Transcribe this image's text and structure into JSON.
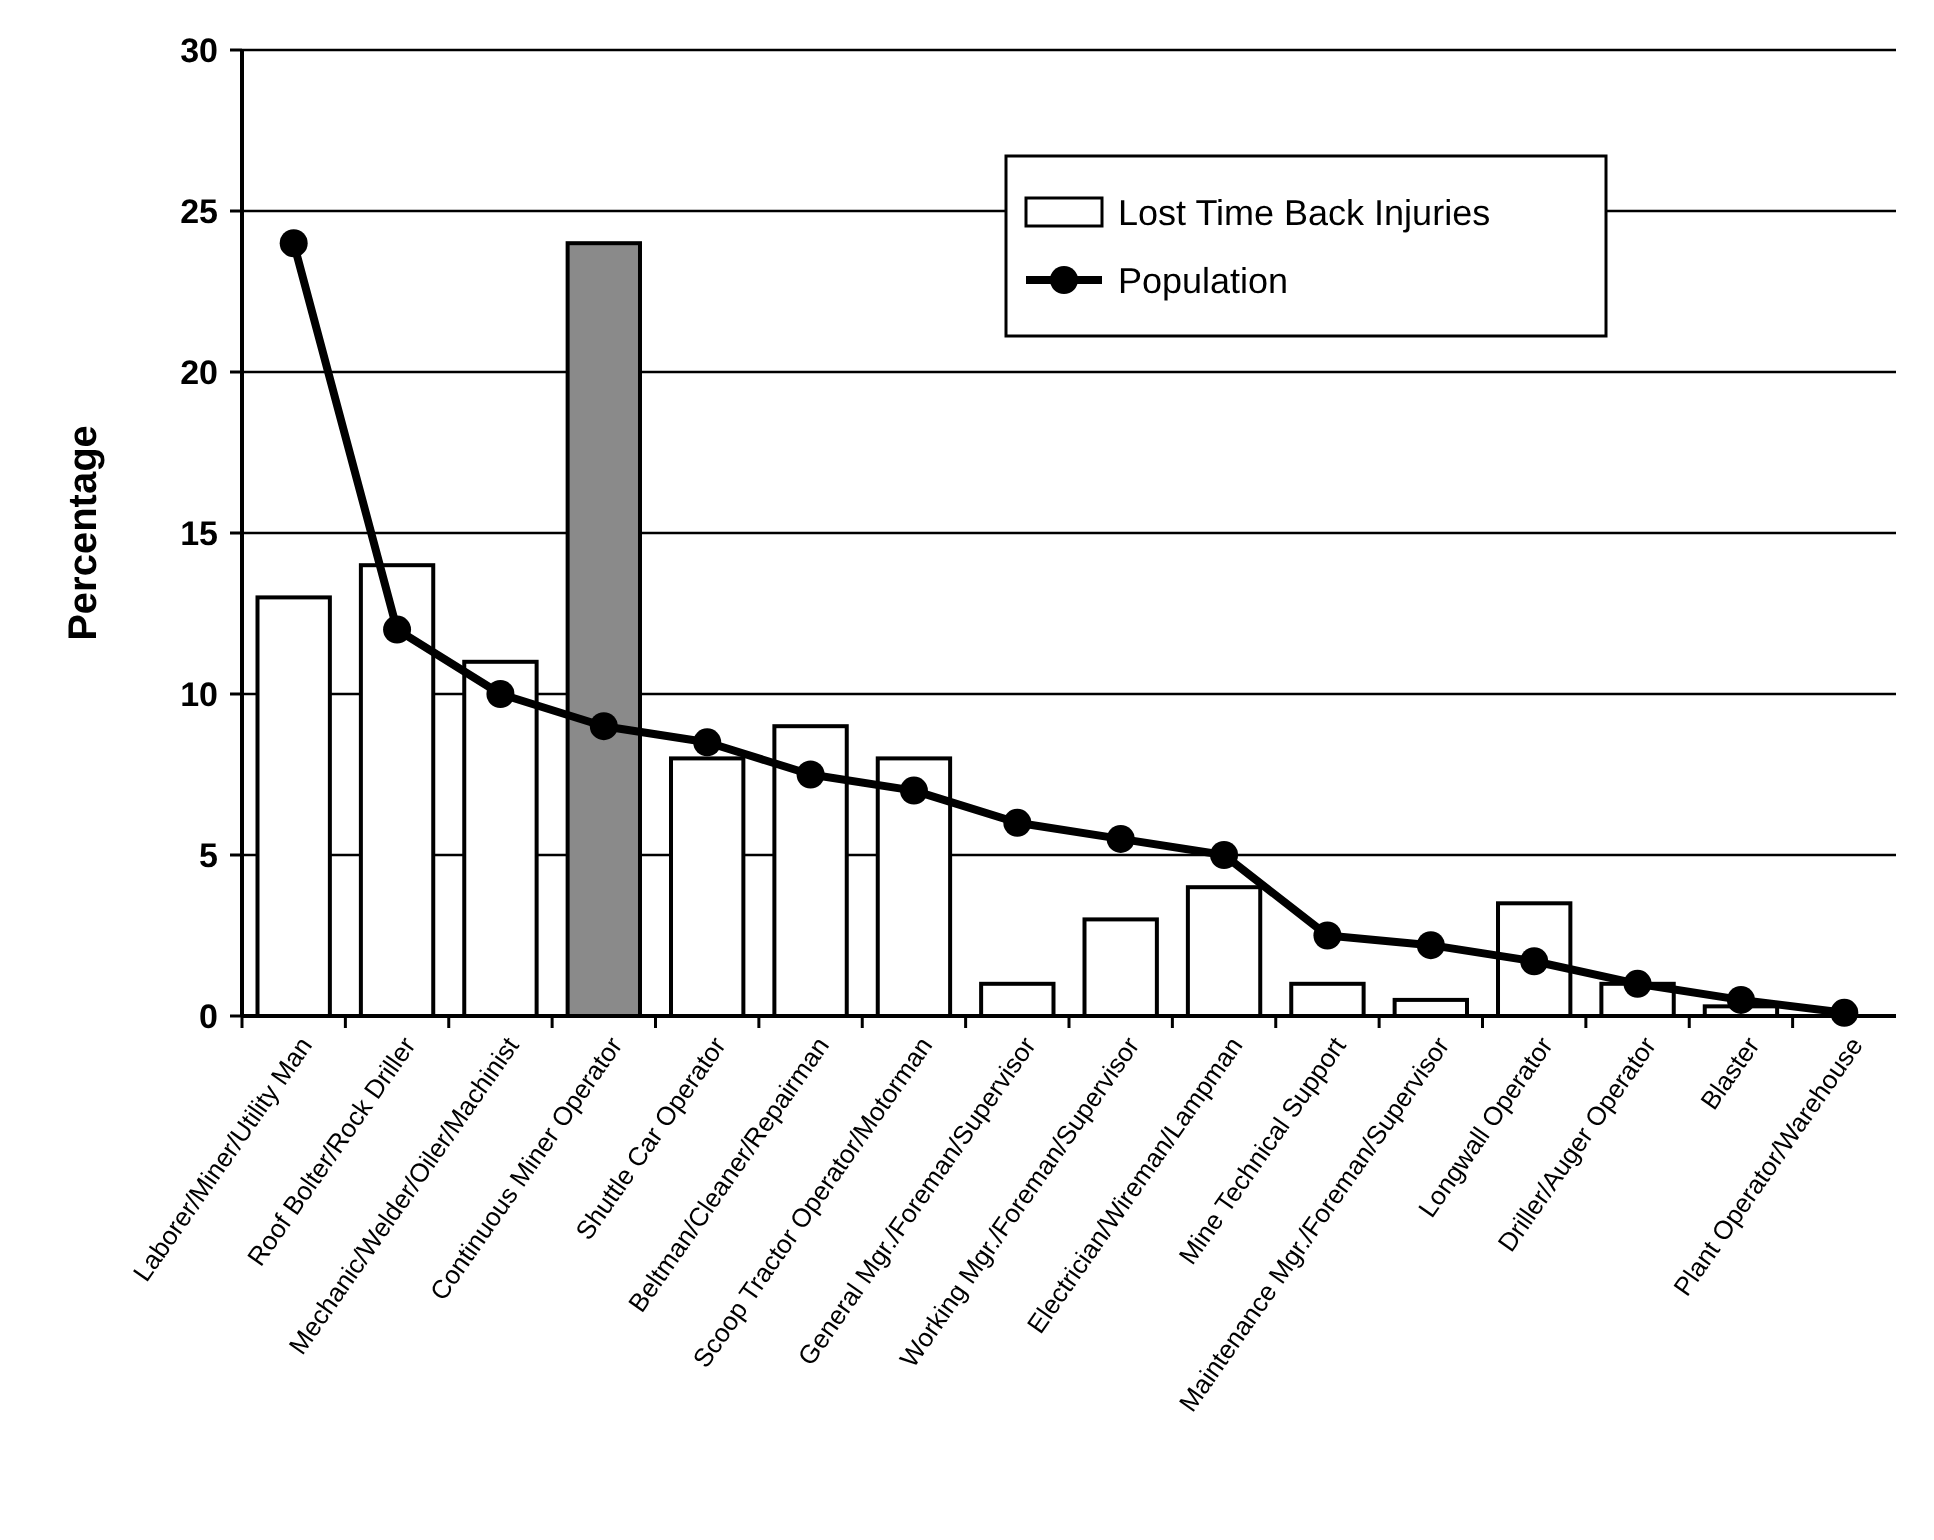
{
  "chart_data": {
    "type": "bar",
    "ylabel": "Percentage",
    "categories": [
      "Laborer/Miner/Utility Man",
      "Roof Bolter/Rock Driller",
      "Mechanic/Welder/Oiler/Machinist",
      "Continuous Miner Operator",
      "Shuttle Car Operator",
      "Beltman/Cleaner/Repairman",
      "Scoop Tractor Operator/Motorman",
      "General Mgr./Foreman/Supervisor",
      "Working Mgr./Foreman/Supervisor",
      "Electrician/Wireman/Lampman",
      "Mine Technical Support",
      "Maintenance Mgr./Foreman/Supervisor",
      "Longwall Operator",
      "Driller/Auger Operator",
      "Blaster",
      "Plant Operator/Warehouse"
    ],
    "series": [
      {
        "name": "Lost Time Back Injuries",
        "color": "#ffffff",
        "colors": [
          "#ffffff",
          "#ffffff",
          "#ffffff",
          "#8a8a8a",
          "#ffffff",
          "#ffffff",
          "#ffffff",
          "#ffffff",
          "#ffffff",
          "#ffffff",
          "#ffffff",
          "#ffffff",
          "#ffffff",
          "#ffffff",
          "#ffffff",
          "#ffffff"
        ],
        "values": [
          13,
          14,
          11,
          24,
          8,
          9,
          8,
          1,
          3,
          4,
          1,
          0.5,
          3.5,
          1,
          0.3,
          0
        ]
      },
      {
        "name": "Population",
        "type": "line",
        "color": "#000000",
        "values": [
          24,
          12,
          10,
          9,
          8.5,
          7.5,
          7,
          6,
          5.5,
          5,
          2.5,
          2.2,
          1.7,
          1,
          0.5,
          0.1
        ]
      }
    ],
    "ylim": [
      0,
      30
    ],
    "yticks": [
      0,
      5,
      10,
      15,
      20,
      25,
      30
    ],
    "grid": "y",
    "legend": "top right",
    "marker": "circle",
    "line_style": "solid"
  }
}
